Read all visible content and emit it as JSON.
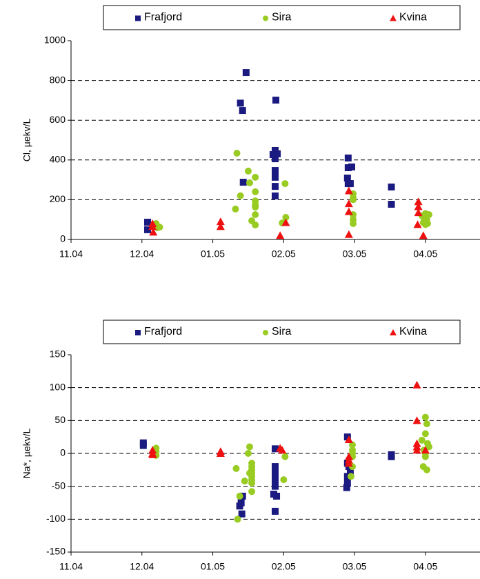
{
  "chart_data": [
    {
      "type": "scatter",
      "y_label": "Cl, µekv/L",
      "xlim": [
        0,
        5.77
      ],
      "xticks": [
        {
          "value": 0,
          "label": "11.04"
        },
        {
          "value": 1,
          "label": "12.04"
        },
        {
          "value": 2,
          "label": "01.05"
        },
        {
          "value": 3,
          "label": "02.05"
        },
        {
          "value": 4,
          "label": "03.05"
        },
        {
          "value": 5,
          "label": "04.05"
        }
      ],
      "ylim": [
        0,
        1000
      ],
      "yticks": [
        0,
        200,
        400,
        600,
        800,
        1000
      ],
      "grid": true,
      "series": [
        {
          "name": "Frafjord",
          "color": "#1a1a80",
          "marker": "square",
          "x": [
            1.08,
            1.08,
            2.39,
            2.42,
            2.47,
            2.43,
            2.89,
            2.88,
            2.91,
            2.85,
            2.88,
            2.88,
            2.88,
            2.88,
            2.88,
            3.91,
            3.91,
            3.96,
            3.9,
            3.91,
            3.94,
            4.52,
            4.52
          ],
          "y": [
            87,
            49,
            686,
            649,
            840,
            288,
            701,
            448,
            431,
            427,
            347,
            313,
            267,
            219,
            406,
            410,
            361,
            365,
            309,
            281,
            281,
            264,
            177
          ]
        },
        {
          "name": "Sira",
          "color": "#99cc22",
          "marker": "circle",
          "x": [
            1.2,
            1.22,
            1.25,
            2.32,
            2.34,
            2.39,
            2.5,
            2.52,
            2.6,
            2.6,
            2.6,
            2.6,
            2.6,
            2.6,
            2.6,
            2.55,
            2.98,
            3.03,
            3.02,
            3.98,
            3.98,
            3.98,
            3.98,
            3.98,
            3.98,
            4.95,
            4.98,
            5.0,
            5.02,
            5.05,
            4.97,
            5.0,
            5.03
          ],
          "y": [
            80,
            59,
            62,
            153,
            434,
            220,
            344,
            285,
            313,
            240,
            194,
            174,
            163,
            125,
            73,
            94,
            83,
            111,
            281,
            230,
            210,
            200,
            125,
            100,
            80,
            120,
            110,
            130,
            100,
            125,
            85,
            75,
            80
          ]
        },
        {
          "name": "Kvina",
          "color": "#ee1111",
          "marker": "triangle",
          "x": [
            1.15,
            1.15,
            1.16,
            2.11,
            2.11,
            2.95,
            3.03,
            3.92,
            3.92,
            3.92,
            3.92,
            4.9,
            4.9,
            4.9,
            4.89,
            4.97
          ],
          "y": [
            80,
            65,
            37,
            90,
            65,
            20,
            85,
            245,
            180,
            140,
            25,
            190,
            165,
            135,
            75,
            20
          ]
        }
      ]
    },
    {
      "type": "scatter",
      "y_label": "Na*, µekv/L",
      "xlim": [
        0,
        5.77
      ],
      "xticks": [
        {
          "value": 0,
          "label": "11.04"
        },
        {
          "value": 1,
          "label": "12.04"
        },
        {
          "value": 2,
          "label": "01.05"
        },
        {
          "value": 3,
          "label": "02.05"
        },
        {
          "value": 4,
          "label": "03.05"
        },
        {
          "value": 5,
          "label": "04.05"
        }
      ],
      "ylim": [
        -150,
        150
      ],
      "yticks": [
        -150,
        -100,
        -50,
        0,
        50,
        100,
        150
      ],
      "grid": true,
      "series": [
        {
          "name": "Frafjord",
          "color": "#1a1a80",
          "marker": "square",
          "x": [
            1.02,
            1.02,
            2.42,
            2.4,
            2.38,
            2.41,
            2.88,
            2.88,
            2.88,
            2.88,
            2.88,
            2.86,
            2.9,
            2.88,
            3.9,
            3.9,
            3.92,
            3.94,
            3.9,
            3.9,
            3.89,
            4.52,
            4.52
          ],
          "y": [
            16,
            12,
            -65,
            -75,
            -80,
            -92,
            7,
            -20,
            -30,
            -40,
            -50,
            -62,
            -65,
            -88,
            25,
            -15,
            -20,
            -30,
            -35,
            -45,
            -52,
            -2,
            -5
          ]
        },
        {
          "name": "Sira",
          "color": "#99cc22",
          "marker": "circle",
          "x": [
            1.2,
            1.2,
            1.2,
            2.33,
            2.35,
            2.38,
            2.45,
            2.5,
            2.52,
            2.55,
            2.55,
            2.55,
            2.55,
            2.55,
            2.55,
            2.55,
            2.55,
            2.52,
            3.02,
            3.0,
            3.97,
            3.97,
            3.97,
            3.97,
            3.97,
            3.95,
            5.0,
            5.02,
            5.0,
            4.95,
            5.03,
            5.05,
            4.98,
            5.0,
            5.0,
            5.02,
            4.97
          ],
          "y": [
            8,
            3,
            -3,
            -23,
            -100,
            -65,
            -42,
            0,
            10,
            -15,
            -20,
            -25,
            -30,
            -35,
            -40,
            -45,
            -58,
            -30,
            -5,
            -40,
            13,
            5,
            0,
            -5,
            -20,
            -35,
            55,
            45,
            30,
            20,
            15,
            10,
            5,
            0,
            -5,
            -25,
            -20
          ]
        },
        {
          "name": "Kvina",
          "color": "#ee1111",
          "marker": "triangle",
          "x": [
            1.15,
            1.15,
            1.15,
            2.11,
            2.11,
            2.95,
            2.98,
            3.92,
            3.92,
            3.92,
            3.92,
            4.88,
            4.88,
            4.88,
            4.88,
            4.88,
            5.0
          ],
          "y": [
            5,
            0,
            -2,
            3,
            0,
            8,
            5,
            21,
            -5,
            -10,
            -15,
            104,
            50,
            15,
            10,
            5,
            5
          ]
        }
      ]
    }
  ]
}
